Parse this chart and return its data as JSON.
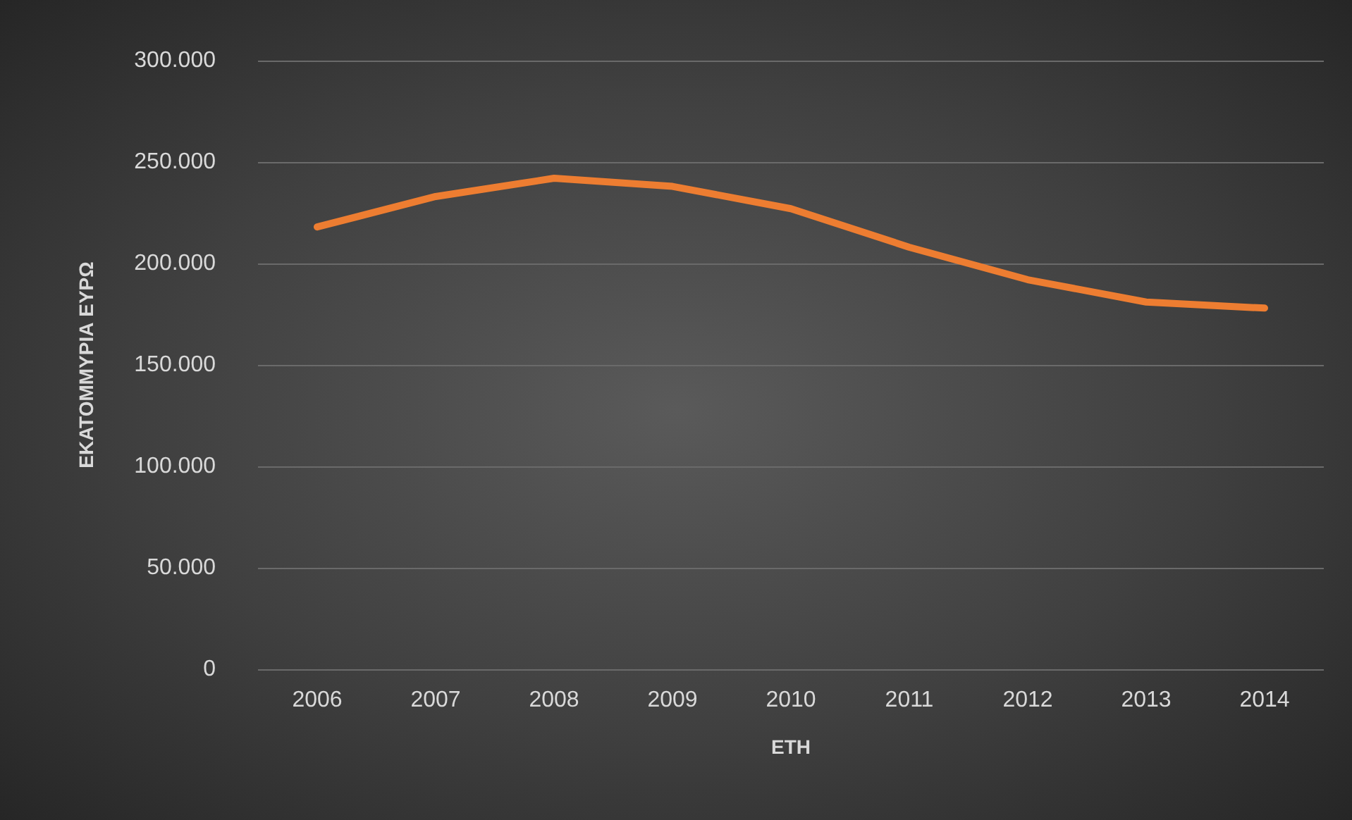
{
  "chart_data": {
    "type": "line",
    "xlabel": "ΕΤΗ",
    "ylabel": "ΕΚΑΤΟΜΜΥΡΙΑ ΕΥΡΩ",
    "categories": [
      "2006",
      "2007",
      "2008",
      "2009",
      "2010",
      "2011",
      "2012",
      "2013",
      "2014"
    ],
    "series": [
      {
        "color": "#ed7d31",
        "values": [
          218000,
          233000,
          242000,
          238000,
          227000,
          208000,
          192000,
          181000,
          178000
        ]
      }
    ],
    "ylim": [
      0,
      300000
    ],
    "yticks": [
      {
        "value": 0,
        "label": "0"
      },
      {
        "value": 50000,
        "label": "50.000"
      },
      {
        "value": 100000,
        "label": "100.000"
      },
      {
        "value": 150000,
        "label": "150.000"
      },
      {
        "value": 200000,
        "label": "200.000"
      },
      {
        "value": 250000,
        "label": "250.000"
      },
      {
        "value": 300000,
        "label": "300.000"
      }
    ],
    "grid": "y",
    "marker": "none",
    "line_style": "solid"
  }
}
